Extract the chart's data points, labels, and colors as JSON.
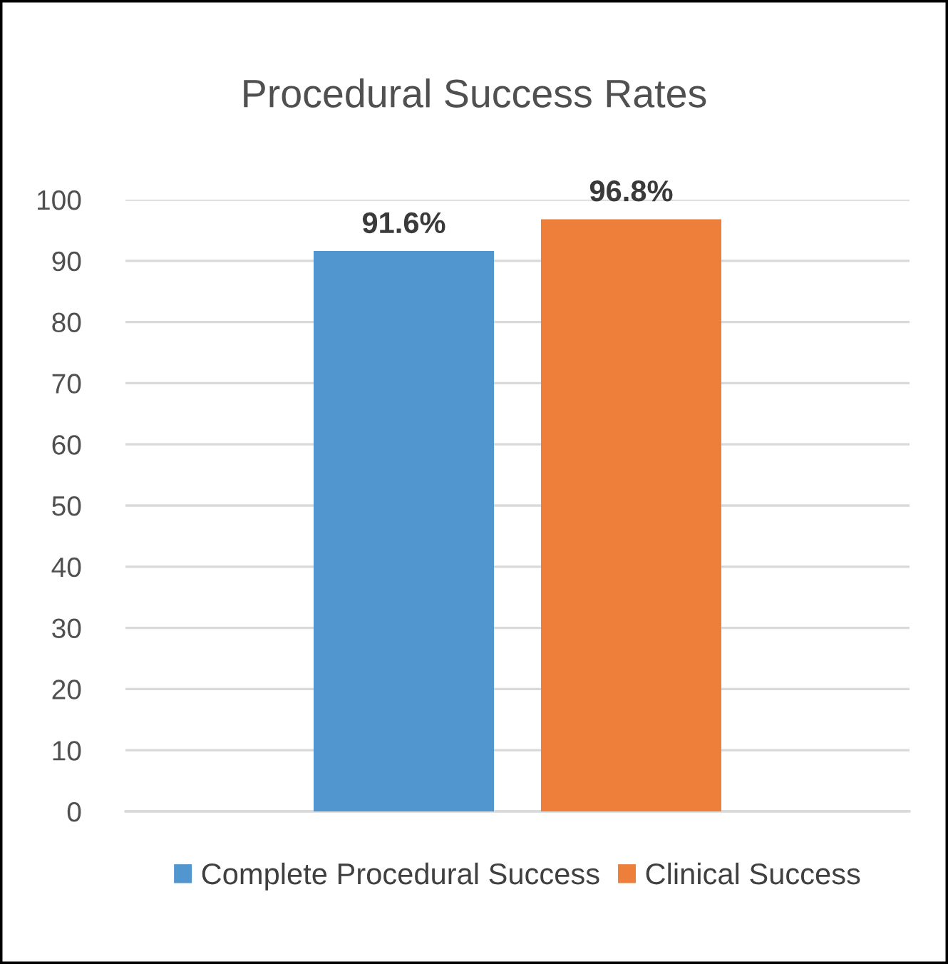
{
  "chart_data": {
    "type": "bar",
    "title": "Procedural Success Rates",
    "categories": [
      null
    ],
    "series": [
      {
        "name": "Complete Procedural Success",
        "color": "#5296d0",
        "values": [
          91.6
        ],
        "value_labels": [
          "91.6%"
        ]
      },
      {
        "name": "Clinical Success",
        "color": "#ee7f3b",
        "values": [
          96.8
        ],
        "value_labels": [
          "96.8%"
        ]
      }
    ],
    "ylim": [
      0,
      100
    ],
    "yticks": [
      0,
      10,
      20,
      30,
      40,
      50,
      60,
      70,
      80,
      90,
      100
    ],
    "grid": "y",
    "legend": "bottom"
  }
}
